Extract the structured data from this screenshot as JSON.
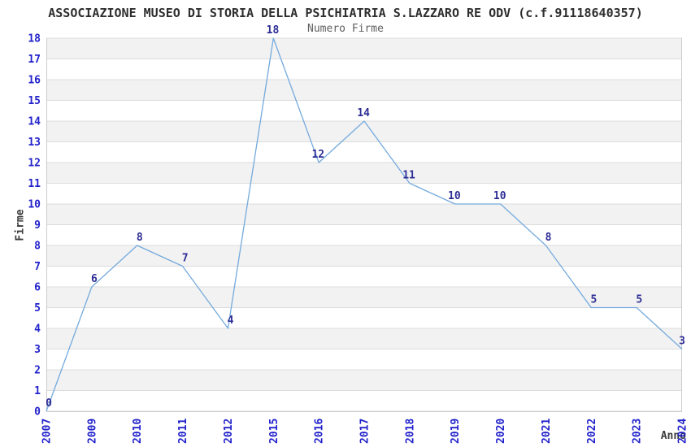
{
  "chart_data": {
    "type": "line",
    "title": "ASSOCIAZIONE MUSEO DI STORIA DELLA PSICHIATRIA S.LAZZARO RE ODV (c.f.91118640357)",
    "subtitle": "Numero Firme",
    "xlabel": "Anno",
    "ylabel": "Firme",
    "categories": [
      "2007",
      "2009",
      "2010",
      "2011",
      "2012",
      "2015",
      "2016",
      "2017",
      "2018",
      "2019",
      "2020",
      "2021",
      "2022",
      "2023",
      "2024"
    ],
    "values": [
      0,
      6,
      8,
      7,
      4,
      18,
      12,
      14,
      11,
      10,
      10,
      8,
      5,
      5,
      3
    ],
    "ylim": [
      0,
      18
    ],
    "ytick_step": 1,
    "grid": true,
    "legend_position": "none",
    "point_labels_visible": true,
    "colors": {
      "line": "#74aadd",
      "point_label": "#2d2d96",
      "tick_label": "#2222cc",
      "title": "#2e2e2e",
      "subtitle": "#5f5f5f",
      "axis_title": "#3a3a3a",
      "gridline": "#dcdcdc",
      "band": "#f2f2f2",
      "plot_border": "#cccccc",
      "background": "#ffffff"
    }
  }
}
